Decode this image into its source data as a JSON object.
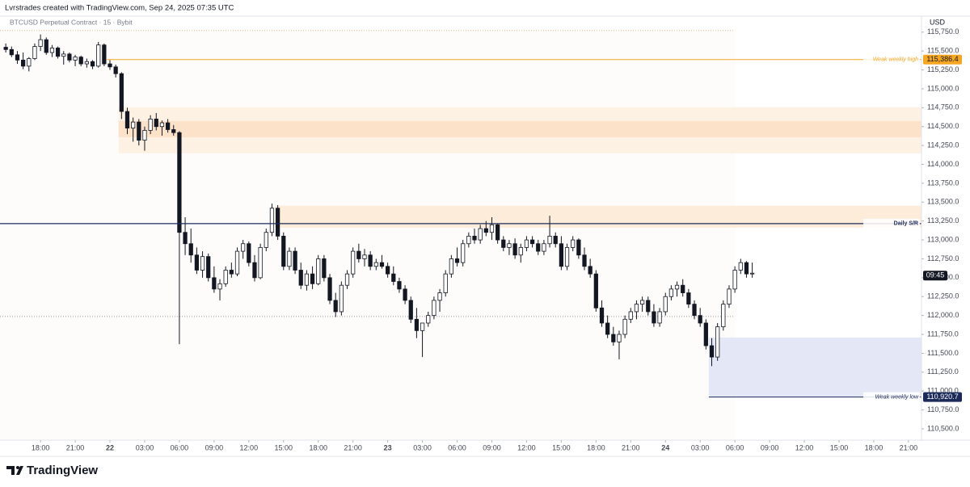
{
  "chart_data": {
    "type": "candlestick",
    "header": "Lvrstrades created with TradingView.com, Sep 24, 2025 07:35 UTC",
    "title": "BTCUSD Perpetual Contract · 15 · Bybit",
    "currency": "USD",
    "brand": "TradingView",
    "countdown": "09:45",
    "up_color": "#ffffff",
    "down_color": "#131722",
    "xlim": [
      -1,
      158.25
    ],
    "ylim": [
      110350,
      115940
    ],
    "yticks": [
      {
        "value": 110500,
        "label": "110,500.0"
      },
      {
        "value": 110750,
        "label": "110,750.0"
      },
      {
        "value": 111000,
        "label": "111,000.0"
      },
      {
        "value": 111250,
        "label": "111,250.0"
      },
      {
        "value": 111500,
        "label": "111,500.0"
      },
      {
        "value": 111750,
        "label": "111,750.0"
      },
      {
        "value": 112000,
        "label": "112,000.0"
      },
      {
        "value": 112250,
        "label": "112,250.0"
      },
      {
        "value": 112500,
        "label": "112,500.0"
      },
      {
        "value": 112750,
        "label": "112,750.0"
      },
      {
        "value": 113000,
        "label": "113,000.0"
      },
      {
        "value": 113250,
        "label": "113,250.0"
      },
      {
        "value": 113500,
        "label": "113,500.0"
      },
      {
        "value": 113750,
        "label": "113,750.0"
      },
      {
        "value": 114000,
        "label": "114,000.0"
      },
      {
        "value": 114250,
        "label": "114,250.0"
      },
      {
        "value": 114500,
        "label": "114,500.0"
      },
      {
        "value": 114750,
        "label": "114,750.0"
      },
      {
        "value": 115000,
        "label": "115,000.0"
      },
      {
        "value": 115250,
        "label": "115,250.0"
      },
      {
        "value": 115500,
        "label": "115,500.0"
      },
      {
        "value": 115750,
        "label": "115,750.0"
      }
    ],
    "xticks": [
      {
        "value": 6,
        "label": "18:00"
      },
      {
        "value": 12,
        "label": "21:00"
      },
      {
        "value": 18,
        "label": "22"
      },
      {
        "value": 24,
        "label": "03:00"
      },
      {
        "value": 30,
        "label": "06:00"
      },
      {
        "value": 36,
        "label": "09:00"
      },
      {
        "value": 42,
        "label": "12:00"
      },
      {
        "value": 48,
        "label": "15:00"
      },
      {
        "value": 54,
        "label": "18:00"
      },
      {
        "value": 60,
        "label": "21:00"
      },
      {
        "value": 66,
        "label": "23"
      },
      {
        "value": 72,
        "label": "03:00"
      },
      {
        "value": 78,
        "label": "06:00"
      },
      {
        "value": 84,
        "label": "09:00"
      },
      {
        "value": 90,
        "label": "12:00"
      },
      {
        "value": 96,
        "label": "15:00"
      },
      {
        "value": 102,
        "label": "18:00"
      },
      {
        "value": 108,
        "label": "21:00"
      },
      {
        "value": 114,
        "label": "24"
      },
      {
        "value": 120,
        "label": "03:00"
      },
      {
        "value": 126,
        "label": "06:00"
      },
      {
        "value": 132,
        "label": "09:00"
      },
      {
        "value": 138,
        "label": "12:00"
      },
      {
        "value": 144,
        "label": "15:00"
      },
      {
        "value": 150,
        "label": "18:00"
      },
      {
        "value": 156,
        "label": "21:00"
      }
    ],
    "zones": [
      {
        "low": 114146,
        "high": 114756,
        "from": 19.5,
        "color": "#fdf1e4"
      },
      {
        "low": 114360,
        "high": 114574,
        "from": 19.5,
        "color": "#fbe2c8"
      },
      {
        "low": 113163,
        "high": 113452,
        "from": 46.5,
        "color": "#fcecd9"
      },
      {
        "low": 110920.7,
        "high": 111709,
        "from": 121.5,
        "color": "#e4e8f6"
      }
    ],
    "dotted_lines": [
      {
        "price": 115771,
        "to": 126,
        "color": "#e8b98a"
      },
      {
        "price": 111987,
        "to": 126,
        "color": "#9598a1"
      }
    ],
    "levels": [
      {
        "name": "Weak weekly high",
        "price": {
          "value": 115386.4,
          "label": "115,386.4"
        },
        "from": 17.5,
        "color": "#f5a623"
      },
      {
        "name": "Daily S/R",
        "price": 113216,
        "from": -1,
        "color": "#1c2a5a"
      },
      {
        "name": "Weak weekly low",
        "price": {
          "value": 110920.7,
          "label": "110,920.7"
        },
        "from": 121.5,
        "color": "#1c2a5a"
      }
    ],
    "candles": [
      [
        115550,
        115600,
        115480,
        115520
      ],
      [
        115520,
        115560,
        115420,
        115450
      ],
      [
        115450,
        115500,
        115330,
        115380
      ],
      [
        115380,
        115480,
        115260,
        115300
      ],
      [
        115300,
        115420,
        115230,
        115400
      ],
      [
        115400,
        115600,
        115380,
        115560
      ],
      [
        115560,
        115720,
        115500,
        115650
      ],
      [
        115650,
        115680,
        115450,
        115480
      ],
      [
        115480,
        115580,
        115420,
        115540
      ],
      [
        115540,
        115560,
        115400,
        115430
      ],
      [
        115430,
        115500,
        115320,
        115460
      ],
      [
        115460,
        115480,
        115350,
        115380
      ],
      [
        115380,
        115450,
        115300,
        115420
      ],
      [
        115420,
        115440,
        115300,
        115330
      ],
      [
        115330,
        115400,
        115280,
        115360
      ],
      [
        115360,
        115380,
        115260,
        115300
      ],
      [
        115300,
        115620,
        115280,
        115580
      ],
      [
        115580,
        115600,
        115300,
        115330
      ],
      [
        115330,
        115380,
        115250,
        115290
      ],
      [
        115290,
        115320,
        115150,
        115200
      ],
      [
        115200,
        115220,
        114600,
        114700
      ],
      [
        114700,
        114750,
        114400,
        114480
      ],
      [
        114480,
        114620,
        114300,
        114560
      ],
      [
        114560,
        114600,
        114250,
        114320
      ],
      [
        114320,
        114500,
        114180,
        114450
      ],
      [
        114450,
        114650,
        114400,
        114600
      ],
      [
        114600,
        114680,
        114450,
        114500
      ],
      [
        114500,
        114580,
        114380,
        114550
      ],
      [
        114550,
        114600,
        114420,
        114460
      ],
      [
        114460,
        114520,
        114380,
        114420
      ],
      [
        114420,
        114440,
        111620,
        113100
      ],
      [
        113100,
        113300,
        112800,
        112950
      ],
      [
        112950,
        113150,
        112700,
        112800
      ],
      [
        112800,
        112900,
        112550,
        112600
      ],
      [
        112600,
        112850,
        112500,
        112780
      ],
      [
        112780,
        112820,
        112450,
        112500
      ],
      [
        112500,
        112650,
        112300,
        112350
      ],
      [
        112350,
        112480,
        112200,
        112420
      ],
      [
        112420,
        112650,
        112380,
        112600
      ],
      [
        112600,
        112700,
        112500,
        112550
      ],
      [
        112550,
        112900,
        112520,
        112850
      ],
      [
        112850,
        113000,
        112750,
        112950
      ],
      [
        112950,
        112980,
        112650,
        112700
      ],
      [
        112700,
        112800,
        112450,
        112500
      ],
      [
        112500,
        112950,
        112480,
        112900
      ],
      [
        112900,
        113150,
        112850,
        113100
      ],
      [
        113100,
        113480,
        113050,
        113420
      ],
      [
        113420,
        113460,
        113000,
        113050
      ],
      [
        113050,
        113100,
        112600,
        112650
      ],
      [
        112650,
        112900,
        112600,
        112850
      ],
      [
        112850,
        112900,
        112550,
        112600
      ],
      [
        112600,
        112700,
        112350,
        112400
      ],
      [
        112400,
        112600,
        112330,
        112550
      ],
      [
        112550,
        112650,
        112350,
        112420
      ],
      [
        112420,
        112800,
        112400,
        112750
      ],
      [
        112750,
        112800,
        112450,
        112500
      ],
      [
        112500,
        112550,
        112150,
        112200
      ],
      [
        112200,
        112300,
        111980,
        112050
      ],
      [
        112050,
        112450,
        112000,
        112400
      ],
      [
        112400,
        112600,
        112350,
        112550
      ],
      [
        112550,
        112900,
        112500,
        112850
      ],
      [
        112850,
        112950,
        112700,
        112750
      ],
      [
        112750,
        112880,
        112650,
        112800
      ],
      [
        112800,
        112850,
        112600,
        112650
      ],
      [
        112650,
        112750,
        112600,
        112700
      ],
      [
        112700,
        112800,
        112620,
        112650
      ],
      [
        112650,
        112700,
        112500,
        112550
      ],
      [
        112550,
        112650,
        112400,
        112450
      ],
      [
        112450,
        112500,
        112300,
        112350
      ],
      [
        112350,
        112400,
        112150,
        112200
      ],
      [
        112200,
        112250,
        111900,
        111950
      ],
      [
        111950,
        112100,
        111700,
        111800
      ],
      [
        111800,
        111850,
        111450,
        111900
      ],
      [
        111900,
        112050,
        111850,
        112000
      ],
      [
        112000,
        112250,
        111950,
        112200
      ],
      [
        112200,
        112350,
        112050,
        112300
      ],
      [
        112300,
        112600,
        112250,
        112550
      ],
      [
        112550,
        112800,
        112500,
        112750
      ],
      [
        112750,
        112900,
        112650,
        112700
      ],
      [
        112700,
        113000,
        112650,
        112950
      ],
      [
        112950,
        113100,
        112900,
        113050
      ],
      [
        113050,
        113150,
        112950,
        113000
      ],
      [
        113000,
        113200,
        112950,
        113150
      ],
      [
        113150,
        113250,
        113050,
        113100
      ],
      [
        113100,
        113300,
        113000,
        113200
      ],
      [
        113200,
        113220,
        112950,
        113000
      ],
      [
        113000,
        113050,
        112850,
        112900
      ],
      [
        112900,
        113000,
        112800,
        112950
      ],
      [
        112950,
        113020,
        112750,
        112800
      ],
      [
        112800,
        112950,
        112700,
        112900
      ],
      [
        112900,
        113050,
        112850,
        113000
      ],
      [
        113000,
        113050,
        112900,
        112950
      ],
      [
        112950,
        113000,
        112800,
        112850
      ],
      [
        112850,
        113000,
        112800,
        112950
      ],
      [
        112950,
        113320,
        112900,
        113050
      ],
      [
        113050,
        113100,
        112900,
        112950
      ],
      [
        112950,
        113050,
        112600,
        112650
      ],
      [
        112650,
        112950,
        112600,
        112900
      ],
      [
        112900,
        113050,
        112850,
        113000
      ],
      [
        113000,
        113020,
        112750,
        112800
      ],
      [
        112800,
        112900,
        112600,
        112650
      ],
      [
        112650,
        112750,
        112500,
        112550
      ],
      [
        112550,
        112600,
        112050,
        112100
      ],
      [
        112100,
        112200,
        111850,
        111900
      ],
      [
        111900,
        112000,
        111700,
        111750
      ],
      [
        111750,
        111850,
        111600,
        111650
      ],
      [
        111650,
        111800,
        111420,
        111750
      ],
      [
        111750,
        112000,
        111700,
        111950
      ],
      [
        111950,
        112100,
        111900,
        112050
      ],
      [
        112050,
        112200,
        111950,
        112150
      ],
      [
        112150,
        112250,
        112050,
        112200
      ],
      [
        112200,
        112250,
        112000,
        112050
      ],
      [
        112050,
        112150,
        111850,
        111900
      ],
      [
        111900,
        112100,
        111850,
        112050
      ],
      [
        112050,
        112300,
        112000,
        112250
      ],
      [
        112250,
        112400,
        112200,
        112350
      ],
      [
        112350,
        112450,
        112250,
        112400
      ],
      [
        112400,
        112480,
        112250,
        112300
      ],
      [
        112300,
        112350,
        112100,
        112150
      ],
      [
        112150,
        112200,
        111950,
        112000
      ],
      [
        112000,
        112100,
        111850,
        111900
      ],
      [
        111900,
        111950,
        111550,
        111600
      ],
      [
        111600,
        111700,
        111330,
        111450
      ],
      [
        111450,
        111900,
        111400,
        111850
      ],
      [
        111850,
        112200,
        111800,
        112150
      ],
      [
        112150,
        112400,
        112100,
        112350
      ],
      [
        112350,
        112650,
        112300,
        112600
      ],
      [
        112600,
        112750,
        112550,
        112700
      ],
      [
        112700,
        112720,
        112500,
        112550
      ],
      [
        112550,
        112700,
        112500,
        112560
      ]
    ]
  }
}
